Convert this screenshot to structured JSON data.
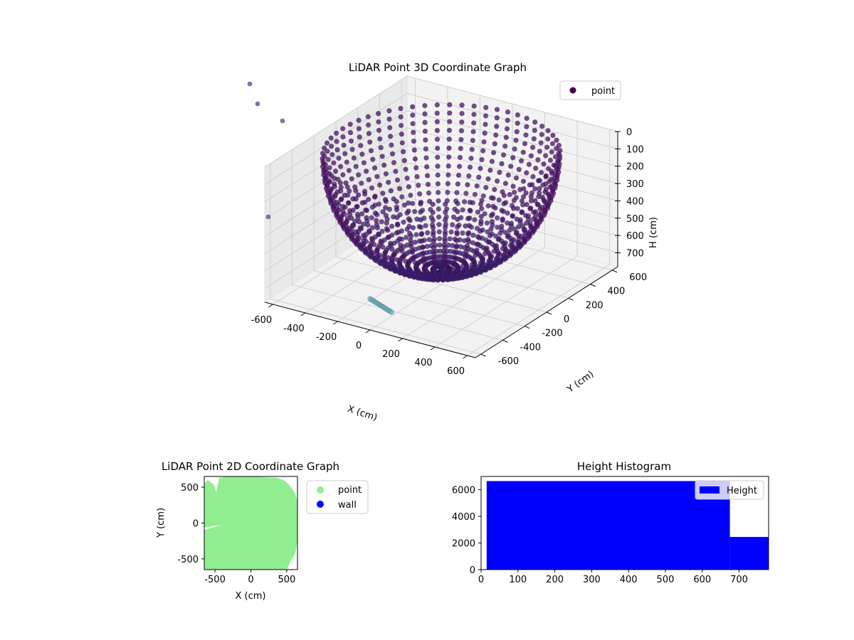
{
  "chart_data": [
    {
      "type": "scatter",
      "projection": "3d",
      "title": "LiDAR Point 3D Coordinate Graph",
      "xlabel": "X (cm)",
      "ylabel": "Y (cm)",
      "zlabel": "H (cm)",
      "xlim": [
        -650,
        650
      ],
      "ylim": [
        -650,
        650
      ],
      "zlim": [
        0,
        780
      ],
      "zaxis_inverted": true,
      "xticks": [
        -600,
        -400,
        -200,
        0,
        200,
        400,
        600
      ],
      "yticks": [
        -600,
        -400,
        -200,
        0,
        200,
        400,
        600
      ],
      "zticks": [
        0,
        100,
        200,
        300,
        400,
        500,
        600,
        700
      ],
      "grid": true,
      "legend": {
        "placement": "upper-right",
        "entries": [
          "point"
        ]
      },
      "series": [
        {
          "name": "point",
          "color": "#440154",
          "description_colormap": "viridis by height"
        }
      ],
      "shape": {
        "kind": "dome-sweeps",
        "radius_cm": 620,
        "max_height_cm": 700,
        "sweep_count": 60
      }
    },
    {
      "type": "scatter",
      "title": "LiDAR Point 2D Coordinate Graph",
      "xlabel": "X (cm)",
      "ylabel": "Y (cm)",
      "xlim": [
        -650,
        650
      ],
      "ylim": [
        -650,
        650
      ],
      "xticks": [
        -500,
        0,
        500
      ],
      "yticks": [
        -500,
        0,
        500
      ],
      "legend": {
        "placement": "outside-right",
        "entries": [
          "point",
          "wall"
        ]
      },
      "series": [
        {
          "name": "point",
          "color": "#90ee90"
        },
        {
          "name": "wall",
          "color": "#0000ff"
        }
      ]
    },
    {
      "type": "bar",
      "title": "Height Histogram",
      "xlim": [
        0,
        780
      ],
      "ylim": [
        0,
        7000
      ],
      "xticks": [
        0,
        100,
        200,
        300,
        400,
        500,
        600,
        700
      ],
      "yticks": [
        0,
        2000,
        4000,
        6000
      ],
      "legend": {
        "placement": "upper-right",
        "entries": [
          "Height"
        ]
      },
      "color": "#0000ff",
      "bins": [
        {
          "x0": 15,
          "x1": 675,
          "count": 6650
        },
        {
          "x0": 675,
          "x1": 780,
          "count": 2450
        }
      ]
    }
  ]
}
